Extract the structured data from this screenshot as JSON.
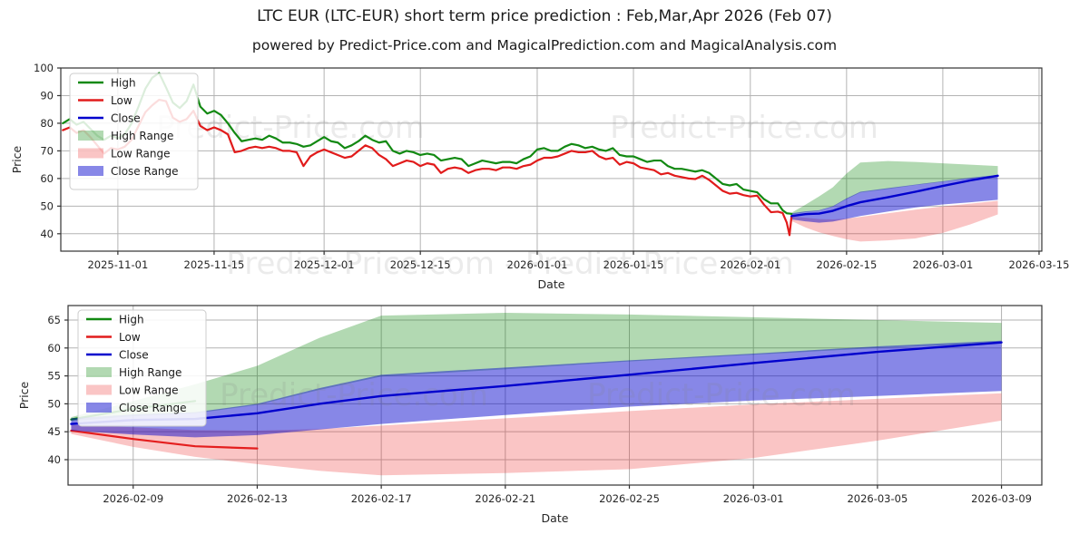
{
  "title": "LTC EUR (LTC-EUR) short term price prediction : Feb,Mar,Apr 2026 (Feb 07)",
  "subtitle": "powered by Predict-Price.com and MagicalPrediction.com and MagicalAnalysis.com",
  "watermark": {
    "text": "Predict-Price.com",
    "mid_text": "Predict-Price.com - Predict-Price.com"
  },
  "colors": {
    "high_line": "#128912",
    "low_line": "#e11b1b",
    "close_line": "#0101cd",
    "high_band": "rgba(0,128,0,0.30)",
    "low_band": "rgba(235,40,40,0.27)",
    "close_band": "rgba(0,0,205,0.47)",
    "grid": "#b3b3b3",
    "border": "#333333",
    "tick_text": "#262626",
    "watermark": "rgba(128,128,128,0.16)"
  },
  "legend_items": [
    {
      "label": "High",
      "type": "line",
      "color": "#128912"
    },
    {
      "label": "Low",
      "type": "line",
      "color": "#e11b1b"
    },
    {
      "label": "Close",
      "type": "line",
      "color": "#0101cd"
    },
    {
      "label": "High Range",
      "type": "patch",
      "color": "rgba(0,128,0,0.30)"
    },
    {
      "label": "Low Range",
      "type": "patch",
      "color": "rgba(235,40,40,0.27)"
    },
    {
      "label": "Close Range",
      "type": "patch",
      "color": "rgba(0,0,205,0.47)"
    }
  ],
  "chart_data": [
    {
      "id": "main-chart",
      "type": "line",
      "xlabel": "Date",
      "ylabel": "Price",
      "xlim": [
        -8.3,
        134.4
      ],
      "ylim": [
        33.7,
        100
      ],
      "yticks": [
        40,
        50,
        60,
        70,
        80,
        90,
        100
      ],
      "xticks": [
        {
          "x": 0,
          "label": "2025-11-01"
        },
        {
          "x": 14,
          "label": "2025-11-15"
        },
        {
          "x": 30,
          "label": "2025-12-01"
        },
        {
          "x": 44,
          "label": "2025-12-15"
        },
        {
          "x": 61,
          "label": "2026-01-01"
        },
        {
          "x": 75,
          "label": "2026-01-15"
        },
        {
          "x": 92,
          "label": "2026-02-01"
        },
        {
          "x": 106,
          "label": "2026-02-15"
        },
        {
          "x": 120,
          "label": "2026-03-01"
        },
        {
          "x": 134,
          "label": "2026-03-15"
        }
      ],
      "hist_x": [
        -8,
        -7,
        -6,
        -5,
        -4,
        -3,
        -2,
        -1,
        0,
        1,
        2,
        3,
        4,
        5,
        6,
        7,
        8,
        9,
        10,
        11,
        12,
        13,
        14,
        15,
        16,
        17,
        18,
        19,
        20,
        21,
        22,
        23,
        24,
        25,
        26,
        27,
        28,
        29,
        30,
        31,
        32,
        33,
        34,
        35,
        36,
        37,
        38,
        39,
        40,
        41,
        42,
        43,
        44,
        45,
        46,
        47,
        48,
        49,
        50,
        51,
        52,
        53,
        54,
        55,
        56,
        57,
        58,
        59,
        60,
        61,
        62,
        63,
        64,
        65,
        66,
        67,
        68,
        69,
        70,
        71,
        72,
        73,
        74,
        75,
        76,
        77,
        78,
        79,
        80,
        81,
        82,
        83,
        84,
        85,
        86,
        87,
        88,
        89,
        90,
        91,
        92,
        93,
        94,
        95,
        96,
        96.7,
        97.3,
        97.7,
        98
      ],
      "hist_high": [
        80,
        81.5,
        79.5,
        80.5,
        78,
        75.5,
        74,
        75.5,
        74.5,
        76,
        80,
        86,
        92.5,
        96.5,
        98.2,
        93,
        87.5,
        85.5,
        88,
        94,
        86,
        83.5,
        84.5,
        83,
        80,
        76.5,
        73.5,
        74,
        74.5,
        74,
        75.5,
        74.5,
        73,
        73,
        72.5,
        71.5,
        72,
        73.5,
        75,
        73.5,
        73,
        71,
        72,
        73.5,
        75.5,
        74,
        73,
        73.5,
        70,
        69,
        70,
        69.5,
        68.5,
        69,
        68.5,
        66.5,
        67,
        67.5,
        67,
        64.5,
        65.5,
        66.5,
        66,
        65.5,
        66,
        66,
        65.5,
        67,
        68,
        70.5,
        71,
        70,
        70,
        71.5,
        72.5,
        72,
        71,
        71.5,
        70.5,
        70,
        71,
        68.5,
        68,
        68,
        67,
        66,
        66.5,
        66.5,
        64.5,
        63.5,
        63.5,
        63,
        62.5,
        63,
        62,
        60,
        58,
        57.5,
        58,
        56,
        55.5,
        55,
        52.5,
        51,
        51,
        48.5,
        47.4,
        47.3,
        47.2
      ],
      "hist_low": [
        77.5,
        78.5,
        76.5,
        77.5,
        75,
        72,
        69,
        71,
        70.5,
        71.5,
        74,
        79,
        84,
        86.5,
        88.5,
        88,
        82,
        80.5,
        81.5,
        84.5,
        79,
        77.5,
        78.5,
        77.5,
        76,
        69.5,
        70,
        71,
        71.5,
        71,
        71.5,
        71,
        70,
        70,
        69.5,
        64.5,
        68,
        69.5,
        70.5,
        69.5,
        68.5,
        67.5,
        68,
        70,
        72,
        71,
        68.5,
        67,
        64.5,
        65.5,
        66.5,
        66,
        64.5,
        65.5,
        65,
        62,
        63.5,
        64,
        63.5,
        62,
        63,
        63.5,
        63.5,
        63,
        64,
        64,
        63.5,
        64.5,
        65,
        66.5,
        67.5,
        67.5,
        68,
        69,
        70,
        69.5,
        69.5,
        70,
        68,
        67,
        67.5,
        65,
        66,
        65.5,
        64,
        63.5,
        63,
        61.5,
        62,
        61,
        60.5,
        60,
        59.8,
        61,
        59.5,
        57.5,
        55.5,
        54.5,
        54.8,
        54,
        53.5,
        53.8,
        50.5,
        47.8,
        48,
        47.5,
        44,
        39.5,
        46.4
      ],
      "pred": {
        "x": [
          98,
          100,
          102,
          104,
          106,
          108,
          112,
          116,
          120,
          124,
          128
        ],
        "close": [
          46.4,
          47.1,
          47.3,
          48.3,
          50.0,
          51.4,
          53.2,
          55.2,
          57.3,
          59.3,
          61.0
        ],
        "close_hi": [
          47.4,
          48.1,
          48.5,
          50.0,
          52.8,
          55.2,
          56.5,
          57.8,
          59.0,
          60.3,
          61.3
        ],
        "close_lo": [
          45.2,
          44.5,
          44.0,
          44.4,
          45.4,
          46.4,
          48.0,
          49.5,
          50.6,
          51.4,
          52.3
        ],
        "high_hi": [
          47.6,
          50.5,
          53.5,
          56.8,
          61.8,
          65.8,
          66.3,
          66.0,
          65.5,
          65.0,
          64.5
        ],
        "high_lo": [
          46.9,
          47.8,
          48.3,
          49.8,
          52.5,
          54.9,
          56.2,
          57.6,
          58.8,
          60.0,
          60.9
        ],
        "low_hi": [
          46.2,
          45.8,
          45.3,
          45.2,
          45.5,
          46.1,
          47.4,
          48.7,
          49.9,
          50.9,
          51.9
        ],
        "low_lo": [
          44.6,
          42.3,
          40.5,
          39.2,
          38.0,
          37.2,
          37.6,
          38.3,
          40.3,
          43.4,
          47.0
        ]
      }
    },
    {
      "id": "forecast-chart",
      "type": "line",
      "xlabel": "Date",
      "ylabel": "Price",
      "xlim": [
        -0.1,
        31.3
      ],
      "ylim": [
        35.45,
        67.6
      ],
      "yticks": [
        40,
        45,
        50,
        55,
        60,
        65
      ],
      "xticks": [
        {
          "x": 2,
          "label": "2026-02-09"
        },
        {
          "x": 6,
          "label": "2026-02-13"
        },
        {
          "x": 10,
          "label": "2026-02-17"
        },
        {
          "x": 14,
          "label": "2026-02-21"
        },
        {
          "x": 18,
          "label": "2026-02-25"
        },
        {
          "x": 22,
          "label": "2026-03-01"
        },
        {
          "x": 26,
          "label": "2026-03-05"
        },
        {
          "x": 30,
          "label": "2026-03-09"
        }
      ],
      "stub_high": {
        "x": [
          0,
          2,
          4
        ],
        "y": [
          47.2,
          49.1,
          50.5
        ]
      },
      "stub_low": {
        "x": [
          0,
          2,
          4,
          6
        ],
        "y": [
          45.2,
          43.7,
          42.4,
          42.0
        ]
      },
      "pred": {
        "x": [
          0,
          2,
          4,
          6,
          8,
          10,
          14,
          18,
          22,
          26,
          30
        ],
        "close": [
          46.4,
          47.1,
          47.3,
          48.3,
          50.0,
          51.4,
          53.2,
          55.2,
          57.3,
          59.3,
          61.0
        ],
        "close_hi": [
          47.4,
          48.1,
          48.5,
          50.0,
          52.8,
          55.2,
          56.5,
          57.8,
          59.0,
          60.3,
          61.3
        ],
        "close_lo": [
          45.2,
          44.5,
          44.0,
          44.4,
          45.4,
          46.4,
          48.0,
          49.5,
          50.6,
          51.4,
          52.3
        ],
        "high_hi": [
          47.6,
          50.5,
          53.5,
          56.8,
          61.8,
          65.8,
          66.3,
          66.0,
          65.5,
          65.0,
          64.5
        ],
        "high_lo": [
          46.9,
          47.8,
          48.3,
          49.8,
          52.5,
          54.9,
          56.2,
          57.6,
          58.8,
          60.0,
          60.9
        ],
        "low_hi": [
          46.2,
          45.8,
          45.3,
          45.2,
          45.5,
          46.1,
          47.4,
          48.7,
          49.9,
          50.9,
          51.9
        ],
        "low_lo": [
          44.6,
          42.3,
          40.5,
          39.2,
          38.0,
          37.2,
          37.6,
          38.3,
          40.3,
          43.4,
          47.0
        ]
      }
    }
  ]
}
